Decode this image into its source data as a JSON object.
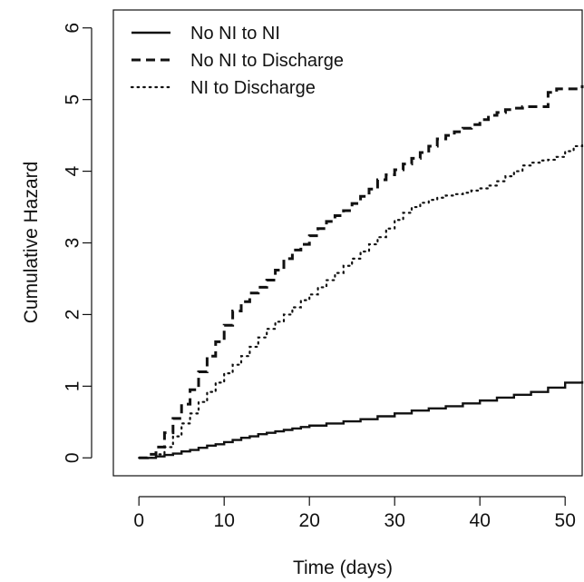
{
  "chart_data": {
    "type": "line",
    "title": "",
    "xlabel": "Time (days)",
    "ylabel": "Cumulative Hazard",
    "xlim": [
      -3,
      52
    ],
    "ylim": [
      -0.25,
      6.25
    ],
    "x_ticks": [
      0,
      10,
      20,
      30,
      40,
      50
    ],
    "y_ticks": [
      0,
      1,
      2,
      3,
      4,
      5,
      6
    ],
    "grid": false,
    "legend_position": "top-left",
    "series": [
      {
        "name": "No NI to NI",
        "line_style": "solid",
        "step": true,
        "x": [
          0,
          2,
          3,
          4,
          5,
          6,
          7,
          8,
          9,
          10,
          11,
          12,
          13,
          14,
          15,
          16,
          17,
          18,
          19,
          20,
          22,
          24,
          26,
          28,
          30,
          32,
          34,
          36,
          38,
          40,
          42,
          44,
          46,
          48,
          50,
          52
        ],
        "y": [
          0,
          0.02,
          0.04,
          0.06,
          0.09,
          0.11,
          0.14,
          0.17,
          0.19,
          0.22,
          0.25,
          0.28,
          0.3,
          0.33,
          0.35,
          0.37,
          0.39,
          0.41,
          0.43,
          0.45,
          0.48,
          0.51,
          0.54,
          0.58,
          0.62,
          0.66,
          0.69,
          0.72,
          0.76,
          0.8,
          0.84,
          0.88,
          0.92,
          0.98,
          1.05,
          1.07
        ]
      },
      {
        "name": "No NI to Discharge",
        "line_style": "dashed",
        "step": true,
        "x": [
          0,
          1,
          2,
          3,
          4,
          5,
          6,
          7,
          8,
          9,
          10,
          11,
          12,
          13,
          14,
          15,
          16,
          17,
          18,
          19,
          20,
          21,
          22,
          23,
          24,
          25,
          26,
          27,
          28,
          29,
          30,
          31,
          32,
          33,
          34,
          35,
          36,
          37,
          38,
          39,
          40,
          41,
          42,
          43,
          44,
          45,
          46,
          47,
          48,
          49,
          50,
          51,
          52
        ],
        "y": [
          0,
          0.05,
          0.15,
          0.35,
          0.55,
          0.75,
          0.95,
          1.2,
          1.42,
          1.62,
          1.85,
          2.05,
          2.18,
          2.3,
          2.38,
          2.48,
          2.62,
          2.78,
          2.9,
          2.98,
          3.1,
          3.2,
          3.3,
          3.38,
          3.45,
          3.55,
          3.65,
          3.75,
          3.88,
          3.95,
          4.02,
          4.1,
          4.18,
          4.26,
          4.35,
          4.45,
          4.5,
          4.55,
          4.6,
          4.65,
          4.72,
          4.78,
          4.82,
          4.86,
          4.88,
          4.9,
          4.9,
          4.9,
          5.1,
          5.15,
          5.15,
          5.15,
          5.2
        ]
      },
      {
        "name": "NI to Discharge",
        "line_style": "dotted",
        "step": true,
        "x": [
          0,
          2,
          3,
          4,
          5,
          6,
          7,
          8,
          9,
          10,
          11,
          12,
          13,
          14,
          15,
          16,
          17,
          18,
          19,
          20,
          21,
          22,
          23,
          24,
          25,
          26,
          27,
          28,
          29,
          30,
          31,
          32,
          33,
          34,
          35,
          36,
          37,
          38,
          39,
          40,
          41,
          42,
          43,
          44,
          45,
          46,
          47,
          48,
          49,
          50,
          51,
          52
        ],
        "y": [
          0,
          0.05,
          0.15,
          0.3,
          0.48,
          0.62,
          0.78,
          0.92,
          1.05,
          1.18,
          1.3,
          1.42,
          1.55,
          1.68,
          1.8,
          1.9,
          2.0,
          2.1,
          2.2,
          2.28,
          2.38,
          2.48,
          2.58,
          2.68,
          2.78,
          2.88,
          2.98,
          3.08,
          3.2,
          3.32,
          3.42,
          3.5,
          3.56,
          3.6,
          3.63,
          3.66,
          3.68,
          3.7,
          3.73,
          3.76,
          3.8,
          3.86,
          3.93,
          4.0,
          4.08,
          4.12,
          4.15,
          4.16,
          4.2,
          4.28,
          4.35,
          4.42
        ]
      }
    ]
  }
}
